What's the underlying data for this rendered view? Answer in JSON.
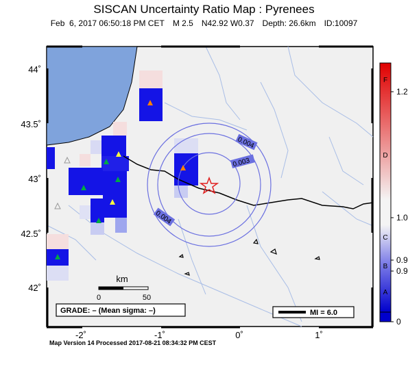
{
  "header": {
    "title": "SISCAN Uncertainty Ratio Map : Pyrenees",
    "date": "Feb  6, 2017 06:50:18 PM CET",
    "magnitude": "M 2.5",
    "location": "N42.92 W0.37",
    "depth": "Depth: 26.6km",
    "id": "ID:10097"
  },
  "axes": {
    "y_ticks": [
      "44˚",
      "43.5˚",
      "43˚",
      "42.5˚",
      "42˚"
    ],
    "x_ticks": [
      "-2˚",
      "-1˚",
      "0˚",
      "1˚"
    ]
  },
  "contours": [
    "0.004",
    "0.003",
    "0.004"
  ],
  "scale_bar": {
    "unit": "km",
    "start": "0",
    "end": "50"
  },
  "grade_box": "GRADE: – (Mean sigma: –)",
  "mi_box": "MI = 6.0",
  "colorbar": {
    "letters": [
      "F",
      "D",
      "C",
      "B",
      "A"
    ],
    "values": [
      "1.2",
      "1.0",
      "0.9",
      "0.9",
      "0"
    ],
    "colors": {
      "top": "#e00000",
      "mid": "#f4f4f4",
      "bottom": "#0000cc"
    }
  },
  "colors": {
    "sea": "#7fa3dc",
    "land": "#f0f0f0",
    "high_cell": "#1414e6",
    "river": "#a8bde6",
    "star": "#e02020"
  },
  "footer": "Map Version 14 Processed 2017-08-21 08:34:32 PM CEST"
}
